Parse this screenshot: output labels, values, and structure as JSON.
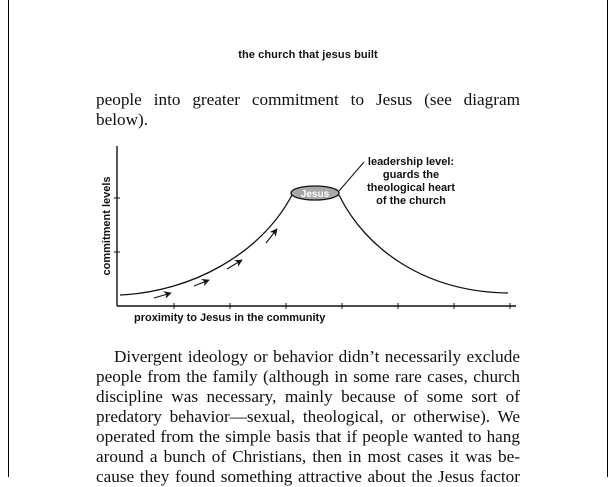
{
  "running_head": "the church that jesus built",
  "paragraph1": {
    "lines": [
      "people into greater commitment to Jesus (see diagram",
      "below)."
    ]
  },
  "diagram": {
    "y_axis_label": "commitment levels",
    "x_axis_label": "proximity to Jesus in the community",
    "peak_label": "Jesus",
    "annotation": [
      "leadership level:",
      "guards the",
      "theological heart",
      "of the church"
    ]
  },
  "paragraph2": {
    "lines": [
      "Divergent ideology or behavior didn’t necessarily exclude",
      "people from the family (although in some rare cases, church",
      "discipline was necessary, mainly because of some sort of",
      "predatory behavior—sexual, theological, or otherwise). We",
      "operated from the simple basis that if people wanted to hang",
      "around a bunch of Christians, then in most cases it was be-",
      "cause they found something attractive about the Jesus factor"
    ]
  }
}
